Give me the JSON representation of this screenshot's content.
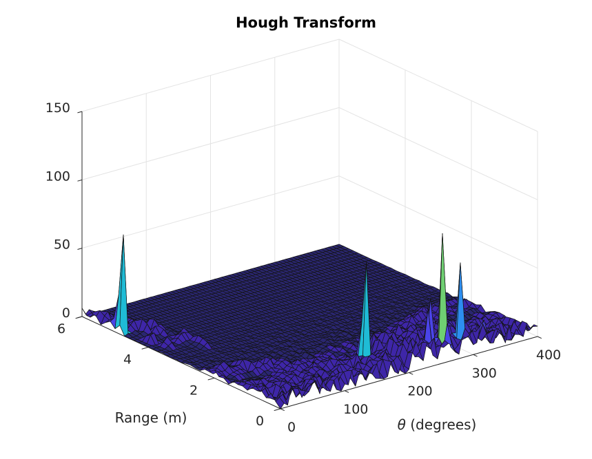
{
  "chart_data": {
    "type": "surface",
    "title": "Hough Transform",
    "xlabel": "θ (degrees)",
    "xlabel_symbol": "θ",
    "xlabel_rest": " (degrees)",
    "ylabel": "Range (m)",
    "zlabel": "",
    "xlim": [
      0,
      400
    ],
    "ylim": [
      0,
      6
    ],
    "zlim": [
      0,
      150
    ],
    "x_ticks": [
      "0",
      "100",
      "200",
      "300",
      "400"
    ],
    "y_ticks": [
      "0",
      "2",
      "4",
      "6"
    ],
    "z_ticks": [
      "0",
      "50",
      "100",
      "150"
    ],
    "grid": true,
    "colormap": [
      "#3e26a8",
      "#4a44e8",
      "#2d8ef0",
      "#1fbcd6",
      "#6fcf72",
      "#d4ce2e",
      "#f9fb15"
    ],
    "base_color": "#2a2670",
    "peaks": [
      {
        "theta": 5,
        "range": 4.9,
        "height": 93
      },
      {
        "theta": 3,
        "range": 5.2,
        "height": 22
      },
      {
        "theta": 14,
        "range": 4.2,
        "height": 20
      },
      {
        "theta": 20,
        "range": 3.8,
        "height": 15
      },
      {
        "theta": 178,
        "range": 0.9,
        "height": 93
      },
      {
        "theta": 268,
        "range": 0.25,
        "height": 125
      },
      {
        "theta": 295,
        "range": 0.25,
        "height": 78
      },
      {
        "theta": 245,
        "range": 0.3,
        "height": 40
      },
      {
        "theta": 230,
        "range": 0.35,
        "height": 32
      },
      {
        "theta": 255,
        "range": 0.4,
        "height": 48
      }
    ]
  }
}
